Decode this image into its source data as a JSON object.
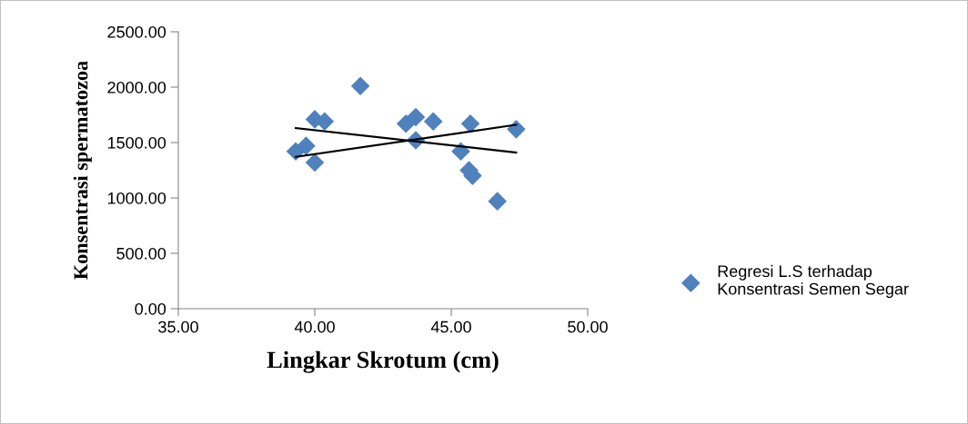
{
  "chart_data": {
    "type": "scatter",
    "xlabel": "Lingkar Skrotum (cm)",
    "ylabel": "Konsentrasi spermatozoa",
    "xlim": [
      35,
      50
    ],
    "xticks": [
      {
        "value": 35,
        "label": "35.00"
      },
      {
        "value": 40,
        "label": "40.00"
      },
      {
        "value": 45,
        "label": "45.00"
      },
      {
        "value": 50,
        "label": "50.00"
      }
    ],
    "ylim": [
      0,
      2500
    ],
    "yticks": [
      {
        "value": 0,
        "label": "0.00"
      },
      {
        "value": 500,
        "label": "500.00"
      },
      {
        "value": 1000,
        "label": "1000.00"
      },
      {
        "value": 1500,
        "label": "1500.00"
      },
      {
        "value": 2000,
        "label": "2000.00"
      },
      {
        "value": 2500,
        "label": "2500.00"
      }
    ],
    "grid": false,
    "legend": "right",
    "series": [
      {
        "name": "Regresi L.S terhadap Konsentrasi Semen Segar",
        "color": "#4f81bd",
        "marker": "diamond",
        "x": [
          39.3,
          39.68,
          40.0,
          40.0,
          40.36,
          41.67,
          43.34,
          43.7,
          43.7,
          44.34,
          45.35,
          45.7,
          45.65,
          45.78,
          46.69,
          47.38
        ],
        "values": [
          1420,
          1470,
          1320,
          1710,
          1690,
          2010,
          1670,
          1730,
          1520,
          1690,
          1420,
          1670,
          1250,
          1200,
          970,
          1620
        ]
      },
      {
        "type": "line",
        "color": "#000000",
        "marker": "none",
        "x": [
          39.3,
          47.38
        ],
        "values": [
          1370,
          1660
        ]
      },
      {
        "type": "line",
        "color": "#000000",
        "marker": "none",
        "x": [
          39.3,
          47.38
        ],
        "values": [
          1630,
          1410
        ]
      }
    ]
  }
}
